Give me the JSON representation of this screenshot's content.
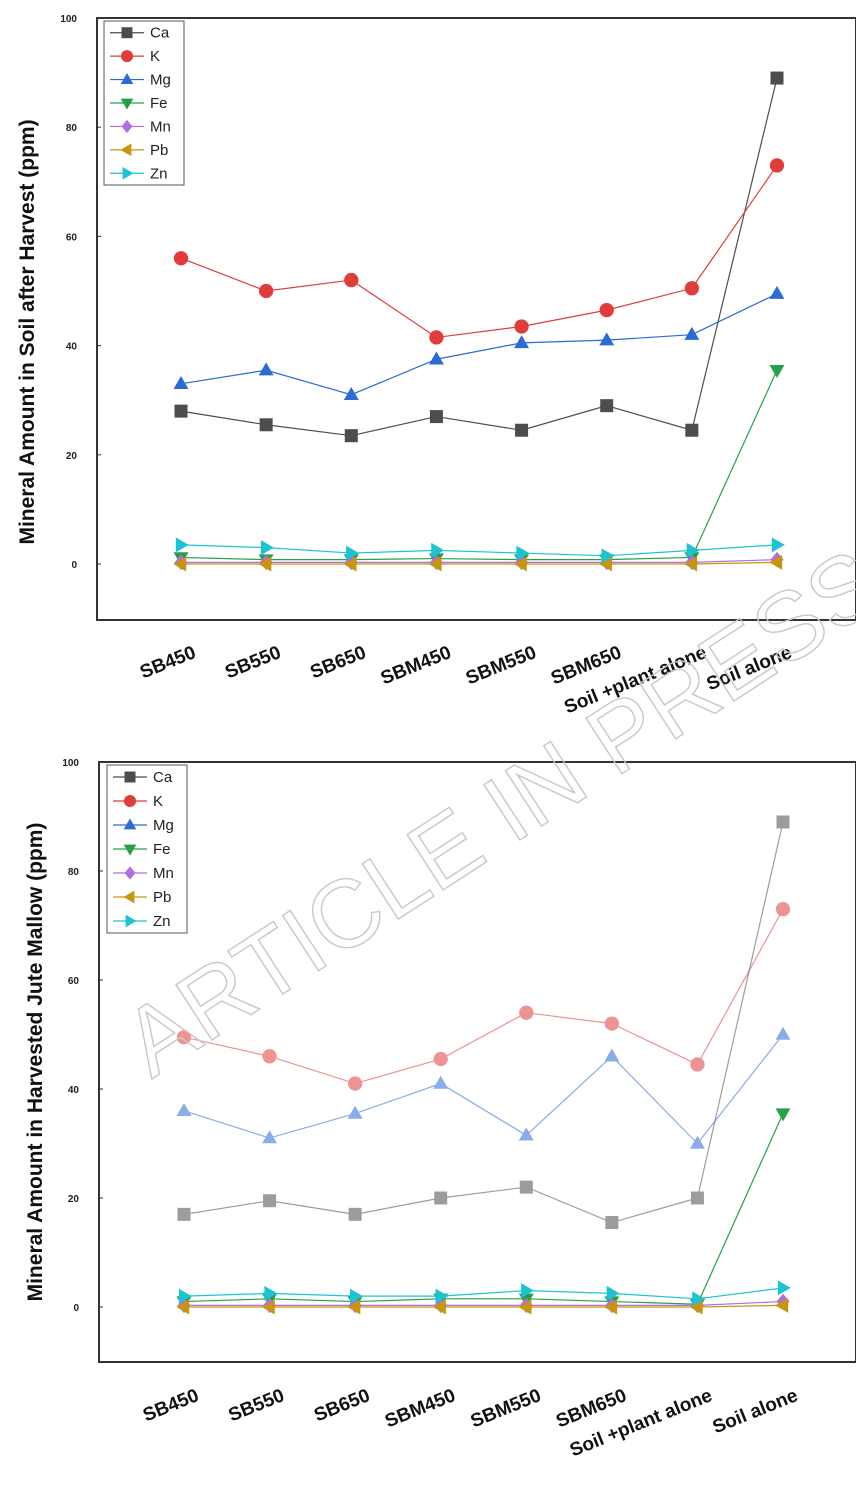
{
  "watermark": "ARTICLE IN PRESS",
  "chart_data": [
    {
      "type": "line",
      "ylabel": "Mineral Amount in Soil after Harvest (ppm)",
      "xlabel": "",
      "ylim": [
        -10,
        100
      ],
      "yticks": [
        0,
        20,
        40,
        60,
        80,
        100
      ],
      "categories": [
        "SB450",
        "SB550",
        "SB650",
        "SBM450",
        "SBM550",
        "SBM650",
        "Soil +plant alone",
        "Soil alone"
      ],
      "legend_position": "top-left",
      "series": [
        {
          "name": "Ca",
          "color": "#4d4d4d",
          "marker": "square",
          "values": [
            28,
            25.5,
            23.5,
            27,
            24.5,
            29,
            24.5,
            89
          ]
        },
        {
          "name": "K",
          "color": "#e03c3c",
          "marker": "circle",
          "values": [
            56,
            50,
            52,
            41.5,
            43.5,
            46.5,
            50.5,
            73
          ]
        },
        {
          "name": "Mg",
          "color": "#2a6bd6",
          "marker": "triangle-up",
          "values": [
            33,
            35.5,
            31,
            37.5,
            40.5,
            41,
            42,
            49.5
          ]
        },
        {
          "name": "Fe",
          "color": "#27a04a",
          "marker": "triangle-down",
          "values": [
            1.2,
            0.8,
            0.8,
            1,
            0.8,
            0.8,
            1.2,
            35.5
          ]
        },
        {
          "name": "Mn",
          "color": "#b06ee0",
          "marker": "diamond",
          "values": [
            0.3,
            0.3,
            0.3,
            0.3,
            0.3,
            0.3,
            0.3,
            0.8
          ]
        },
        {
          "name": "Pb",
          "color": "#c99510",
          "marker": "triangle-left",
          "values": [
            0,
            0,
            0,
            0,
            0,
            0,
            0,
            0.3
          ]
        },
        {
          "name": "Zn",
          "color": "#1cc4d2",
          "marker": "triangle-right",
          "values": [
            3.5,
            3,
            2,
            2.5,
            2,
            1.5,
            2.5,
            3.5
          ]
        }
      ]
    },
    {
      "type": "line",
      "ylabel": "Mineral Amount in Harvested Jute Mallow (ppm)",
      "xlabel": "",
      "ylim": [
        -10,
        100
      ],
      "yticks": [
        0,
        20,
        40,
        60,
        80,
        100
      ],
      "categories": [
        "SB450",
        "SB550",
        "SB650",
        "SBM450",
        "SBM550",
        "SBM650",
        "Soil +plant alone",
        "Soil alone"
      ],
      "legend_position": "top-left",
      "series": [
        {
          "name": "Ca",
          "color": "#4d4d4d",
          "marker": "square",
          "values": [
            17,
            19.5,
            17,
            20,
            22,
            15.5,
            20,
            89
          ]
        },
        {
          "name": "K",
          "color": "#e03c3c",
          "marker": "circle",
          "values": [
            49.5,
            46,
            41,
            45.5,
            54,
            52,
            44.5,
            73
          ]
        },
        {
          "name": "Mg",
          "color": "#2a6bd6",
          "marker": "triangle-up",
          "values": [
            36,
            31,
            35.5,
            41,
            31.5,
            46,
            30,
            50
          ]
        },
        {
          "name": "Fe",
          "color": "#27a04a",
          "marker": "triangle-down",
          "values": [
            1,
            1.5,
            1,
            1.5,
            1.5,
            1,
            0.5,
            35.5
          ]
        },
        {
          "name": "Mn",
          "color": "#b06ee0",
          "marker": "diamond",
          "values": [
            0.3,
            0.3,
            0.3,
            0.3,
            0.3,
            0.3,
            0.3,
            1
          ]
        },
        {
          "name": "Pb",
          "color": "#c99510",
          "marker": "triangle-left",
          "values": [
            0,
            0,
            0,
            0,
            0,
            0,
            0,
            0.3
          ]
        },
        {
          "name": "Zn",
          "color": "#1cc4d2",
          "marker": "triangle-right",
          "values": [
            2,
            2.5,
            2,
            2,
            3,
            2.5,
            1.5,
            3.5
          ]
        }
      ]
    }
  ]
}
